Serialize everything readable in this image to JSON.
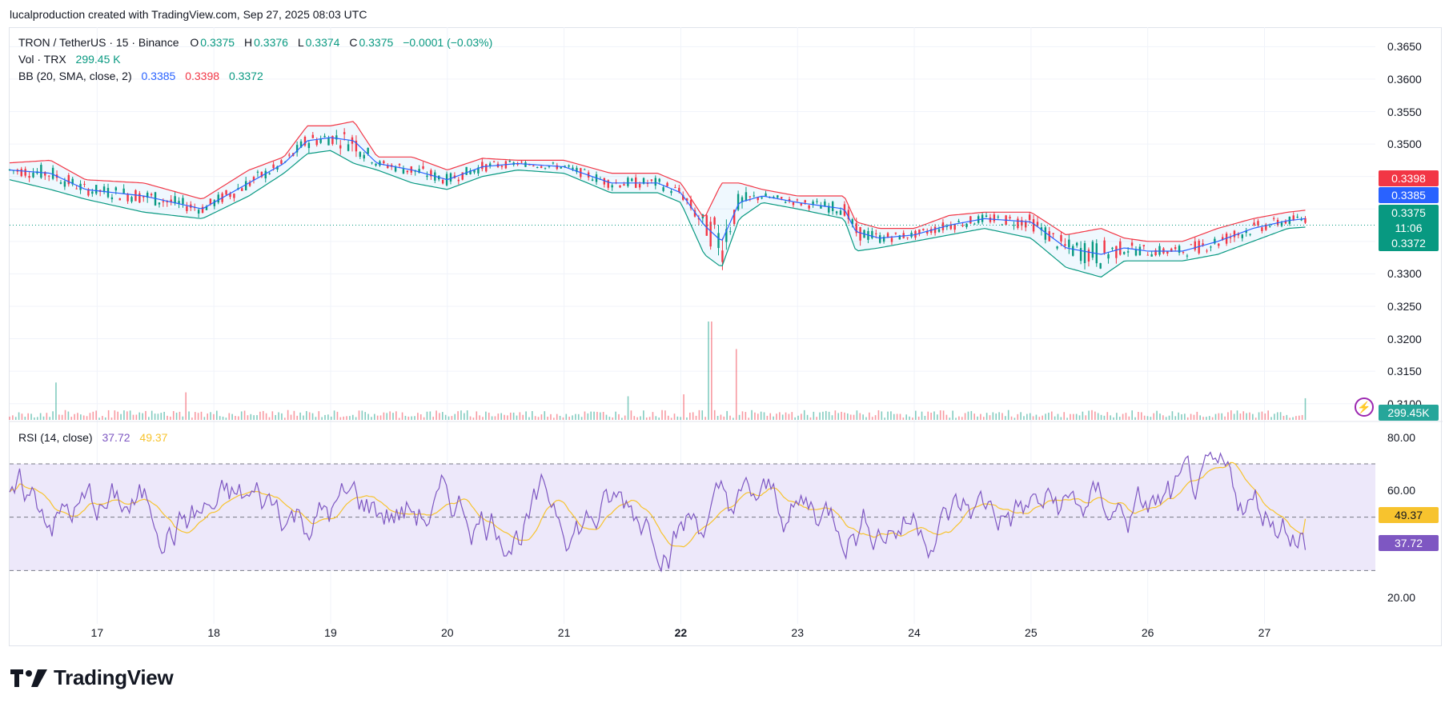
{
  "header": {
    "text": "lucalproduction created with TradingView.com, Sep 27, 2025 08:03 UTC"
  },
  "legend": {
    "symbol": "TRON / TetherUS · 15 · Binance",
    "o_label": "O",
    "o_value": "0.3375",
    "h_label": "H",
    "h_value": "0.3376",
    "l_label": "L",
    "l_value": "0.3374",
    "c_label": "C",
    "c_value": "0.3375",
    "change": "−0.0001 (−0.03%)",
    "vol_label": "Vol · TRX",
    "vol_value": "299.45 K",
    "bb_label": "BB (20, SMA, close, 2)",
    "bb_basis": "0.3385",
    "bb_upper": "0.3398",
    "bb_lower": "0.3372",
    "rsi_label": "RSI (14, close)",
    "rsi_value": "37.72",
    "rsi_ma": "49.37"
  },
  "price_tags": {
    "upper": "0.3398",
    "basis": "0.3385",
    "last": "0.3375",
    "countdown": "11:06",
    "lower": "0.3372",
    "volume": "299.45K",
    "rsi_ma": "49.37",
    "rsi": "37.72"
  },
  "colors": {
    "up": "#089981",
    "down": "#f23645",
    "basis": "#2962ff",
    "upper": "#f23645",
    "lower": "#089981",
    "rsi": "#7e57c2",
    "rsi_ma": "#f7c32e",
    "rsi_band": "#ede8fa"
  },
  "icons": {
    "alert": "lightning-bolt-icon",
    "logo": "tradingview-logo-icon"
  },
  "logo": {
    "text": "TradingView"
  },
  "chart_data": [
    {
      "type": "candlestick",
      "title": "TRON / TetherUS · 15 · Binance",
      "x_tick_labels": [
        "17",
        "18",
        "19",
        "20",
        "21",
        "22",
        "23",
        "24",
        "25",
        "26",
        "27"
      ],
      "bold_x_tick": "22",
      "y_tick_labels": [
        "0.3650",
        "0.3600",
        "0.3550",
        "0.3500",
        "0.3450",
        "0.3400",
        "0.3350",
        "0.3300",
        "0.3250",
        "0.3200",
        "0.3150",
        "0.3100"
      ],
      "ylim": [
        0.3075,
        0.368
      ],
      "xlim": [
        16.25,
        27.95
      ],
      "grid": true,
      "series": [
        {
          "name": "BB upper",
          "x": [
            16.25,
            16.6,
            16.9,
            17.4,
            17.9,
            18.3,
            18.6,
            18.8,
            19.0,
            19.2,
            19.4,
            19.7,
            20.0,
            20.3,
            20.6,
            21.0,
            21.4,
            21.8,
            22.0,
            22.2,
            22.35,
            22.5,
            22.7,
            23.0,
            23.4,
            23.5,
            23.7,
            24.0,
            24.3,
            24.6,
            25.0,
            25.3,
            25.6,
            25.8,
            26.0,
            26.3,
            26.6,
            26.9,
            27.2,
            27.35
          ],
          "values": [
            0.3471,
            0.3475,
            0.3445,
            0.344,
            0.3415,
            0.346,
            0.348,
            0.3528,
            0.3528,
            0.3535,
            0.348,
            0.348,
            0.346,
            0.3478,
            0.3475,
            0.3475,
            0.3455,
            0.3455,
            0.344,
            0.3385,
            0.344,
            0.344,
            0.343,
            0.342,
            0.342,
            0.338,
            0.337,
            0.337,
            0.339,
            0.3395,
            0.3395,
            0.336,
            0.337,
            0.3355,
            0.335,
            0.335,
            0.337,
            0.3385,
            0.3395,
            0.3398
          ]
        },
        {
          "name": "BB basis",
          "x": [
            16.25,
            16.6,
            16.9,
            17.4,
            17.9,
            18.3,
            18.6,
            18.8,
            19.0,
            19.2,
            19.4,
            19.7,
            20.0,
            20.3,
            20.6,
            21.0,
            21.4,
            21.8,
            22.0,
            22.2,
            22.35,
            22.5,
            22.7,
            23.0,
            23.4,
            23.5,
            23.7,
            24.0,
            24.3,
            24.6,
            25.0,
            25.3,
            25.6,
            25.8,
            26.0,
            26.3,
            26.6,
            26.9,
            27.2,
            27.35
          ],
          "values": [
            0.346,
            0.3455,
            0.343,
            0.342,
            0.34,
            0.344,
            0.347,
            0.3505,
            0.351,
            0.3505,
            0.347,
            0.346,
            0.3445,
            0.3465,
            0.347,
            0.3465,
            0.344,
            0.344,
            0.3425,
            0.3375,
            0.335,
            0.341,
            0.342,
            0.341,
            0.34,
            0.3365,
            0.3355,
            0.336,
            0.3375,
            0.3385,
            0.338,
            0.334,
            0.333,
            0.334,
            0.3335,
            0.3335,
            0.335,
            0.337,
            0.3382,
            0.3385
          ]
        },
        {
          "name": "BB lower",
          "x": [
            16.25,
            16.6,
            16.9,
            17.4,
            17.9,
            18.3,
            18.6,
            18.8,
            19.0,
            19.2,
            19.4,
            19.7,
            20.0,
            20.3,
            20.6,
            21.0,
            21.4,
            21.8,
            22.0,
            22.2,
            22.35,
            22.5,
            22.7,
            23.0,
            23.4,
            23.5,
            23.7,
            24.0,
            24.3,
            24.6,
            25.0,
            25.3,
            25.6,
            25.8,
            26.0,
            26.3,
            26.6,
            26.9,
            27.2,
            27.35
          ],
          "values": [
            0.3445,
            0.343,
            0.3415,
            0.3395,
            0.3385,
            0.342,
            0.3455,
            0.3485,
            0.349,
            0.347,
            0.346,
            0.344,
            0.343,
            0.345,
            0.346,
            0.3455,
            0.3425,
            0.3425,
            0.341,
            0.333,
            0.331,
            0.3385,
            0.341,
            0.34,
            0.3385,
            0.3335,
            0.334,
            0.335,
            0.336,
            0.337,
            0.3355,
            0.331,
            0.3295,
            0.332,
            0.332,
            0.332,
            0.333,
            0.335,
            0.337,
            0.3372
          ]
        },
        {
          "name": "Last price",
          "values": [
            0.3375
          ]
        }
      ]
    },
    {
      "type": "bar",
      "title": "Vol · TRX",
      "last_value": "299.45K",
      "spikes": [
        {
          "x": 16.65,
          "relative_height": 0.38
        },
        {
          "x": 17.75,
          "relative_height": 0.28
        },
        {
          "x": 21.55,
          "relative_height": 0.24
        },
        {
          "x": 22.03,
          "relative_height": 0.26
        },
        {
          "x": 22.25,
          "relative_height": 1.0
        },
        {
          "x": 22.48,
          "relative_height": 0.72
        },
        {
          "x": 27.35,
          "relative_height": 0.22
        }
      ]
    },
    {
      "type": "line",
      "title": "RSI (14, close)",
      "y_tick_labels": [
        "80.00",
        "60.00",
        "20.00"
      ],
      "ylim": [
        10,
        85
      ],
      "upper_band": 70,
      "middle_band": 50,
      "lower_band": 30,
      "series": [
        {
          "name": "RSI",
          "last": 37.72
        },
        {
          "name": "RSI MA",
          "last": 49.37
        }
      ]
    }
  ]
}
